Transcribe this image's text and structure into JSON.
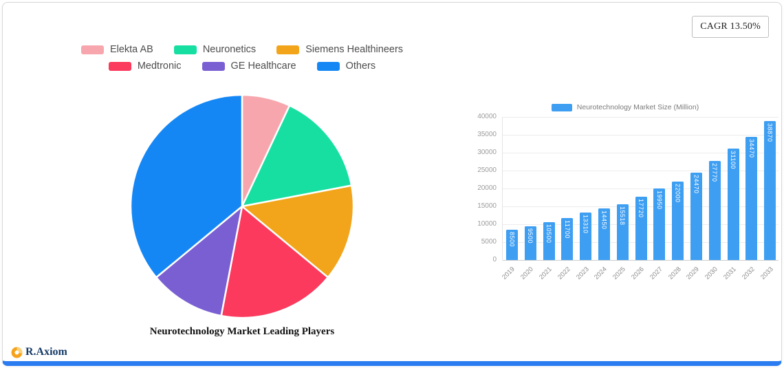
{
  "card": {
    "cagr_label": "CAGR 13.50%",
    "brand_name": "R.Axiom",
    "accent_color": "#2b7cf0"
  },
  "chart_data": [
    {
      "type": "pie",
      "title": "Neurotechnology Market Leading Players",
      "labels": [
        "Elekta AB",
        "Neuronetics",
        "Siemens Healthineers",
        "Medtronic",
        "GE Healthcare",
        "Others"
      ],
      "values": [
        7,
        15,
        14,
        17,
        11,
        36
      ],
      "unit": "% share (estimated from slice angles)",
      "colors": [
        "#f7a6ad",
        "#17dfa2",
        "#f2a51a",
        "#fb3a5d",
        "#7a5fd3",
        "#1487f5"
      ],
      "legend_position": "top"
    },
    {
      "type": "bar",
      "legend": "Neurotechnology Market Size (Million)",
      "categories": [
        "2019",
        "2020",
        "2021",
        "2022",
        "2023",
        "2024",
        "2025",
        "2026",
        "2027",
        "2028",
        "2029",
        "2030",
        "2031",
        "2032",
        "2033"
      ],
      "values": [
        8500,
        9500,
        10500,
        11700,
        13310,
        14450,
        15518,
        17720,
        19950,
        22000,
        24470,
        27770,
        31100,
        34470,
        38870
      ],
      "ylim": [
        0,
        40000
      ],
      "yticks": [
        0,
        5000,
        10000,
        15000,
        20000,
        25000,
        30000,
        35000,
        40000
      ],
      "bar_color": "#3d9ef2",
      "grid": true,
      "legend_position": "top"
    }
  ]
}
